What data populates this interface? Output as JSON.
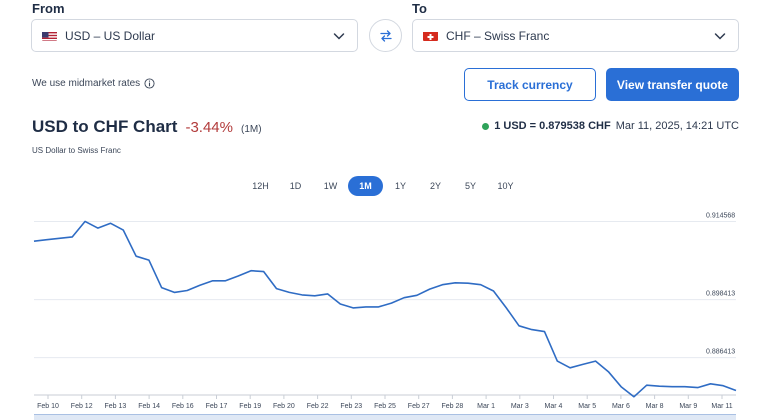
{
  "from": {
    "label": "From",
    "code": "USD",
    "name": "US Dollar",
    "text": "USD – US Dollar",
    "flag": "us-flag"
  },
  "to": {
    "label": "To",
    "code": "CHF",
    "name": "Swiss Franc",
    "text": "CHF – Swiss Franc",
    "flag": "ch-flag"
  },
  "midmarket_note": "We use midmarket rates",
  "buttons": {
    "track": "Track currency",
    "quote": "View transfer quote"
  },
  "chart_header": {
    "title": "USD to CHF Chart",
    "change": "-3.44%",
    "period": "(1M)",
    "subtitle": "US Dollar to Swiss Franc",
    "rate": "1 USD = 0.879538 CHF",
    "timestamp": "Mar 11, 2025, 14:21 UTC"
  },
  "periods": [
    "12H",
    "1D",
    "1W",
    "1M",
    "1Y",
    "2Y",
    "5Y",
    "10Y"
  ],
  "active_period": "1M",
  "colors": {
    "accent": "#2a6fd6",
    "negative": "#b23b3b",
    "live_dot": "#2fa35a",
    "line": "#2f6cc4"
  },
  "chart_data": {
    "type": "line",
    "title": "USD to CHF Chart",
    "xlabel": "",
    "ylabel": "",
    "y_ticks": [
      "0.914568",
      "0.898413",
      "0.886413"
    ],
    "y_tick_values": [
      0.914568,
      0.898413,
      0.886413
    ],
    "x_ticks": [
      "Feb 10",
      "Feb 12",
      "Feb 13",
      "Feb 14",
      "Feb 16",
      "Feb 17",
      "Feb 19",
      "Feb 20",
      "Feb 22",
      "Feb 23",
      "Feb 25",
      "Feb 27",
      "Feb 28",
      "Mar 1",
      "Mar 3",
      "Mar 4",
      "Mar 5",
      "Mar 6",
      "Mar 8",
      "Mar 9",
      "Mar 11"
    ],
    "grid": true,
    "series": [
      {
        "values": [
          0.9105,
          0.9108,
          0.9111,
          0.9114,
          0.9146,
          0.9132,
          0.9142,
          0.9128,
          0.9074,
          0.9066,
          0.9009,
          0.8999,
          0.9003,
          0.9014,
          0.9023,
          0.9023,
          0.9033,
          0.9044,
          0.9042,
          0.9007,
          0.8999,
          0.8994,
          0.8992,
          0.8996,
          0.8975,
          0.8967,
          0.8969,
          0.8969,
          0.8977,
          0.8988,
          0.8993,
          0.9006,
          0.9015,
          0.9019,
          0.9018,
          0.9015,
          0.9002,
          0.8967,
          0.893,
          0.8922,
          0.8918,
          0.8857,
          0.8843,
          0.885,
          0.8857,
          0.8835,
          0.8804,
          0.8783,
          0.8807,
          0.8805,
          0.8804,
          0.8804,
          0.8802,
          0.881,
          0.8806,
          0.8796
        ]
      }
    ]
  }
}
